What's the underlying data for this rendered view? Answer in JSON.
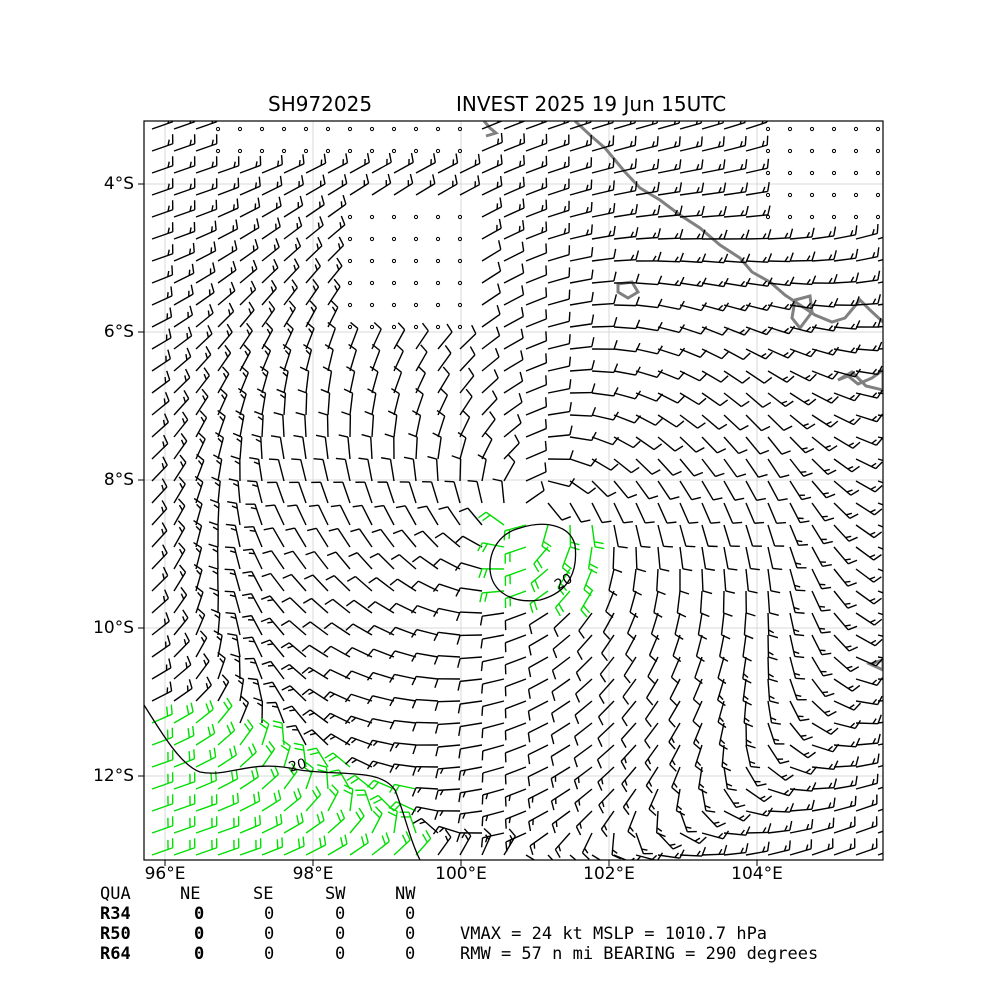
{
  "header": {
    "storm_id": "SH972025",
    "title": "INVEST 2025 19 Jun 15UTC"
  },
  "map": {
    "lon_ticks": [
      "96°E",
      "98°E",
      "100°E",
      "102°E",
      "104°E"
    ],
    "lat_ticks": [
      "4°S",
      "6°S",
      "8°S",
      "10°S",
      "12°S"
    ],
    "contour_label": "20",
    "colors": {
      "barb": "#000000",
      "barb_strong": "#00dd00",
      "coastline": "#808080",
      "grid": "#d8d8d8"
    },
    "vortex_center": {
      "lon": 100.9,
      "lat": -8.4
    }
  },
  "quadrants": {
    "header": [
      "QUA",
      "NE",
      "SE",
      "SW",
      "NW"
    ],
    "rows": [
      {
        "label": "R34",
        "values": [
          "0",
          "0",
          "0",
          "0"
        ]
      },
      {
        "label": "R50",
        "values": [
          "0",
          "0",
          "0",
          "0"
        ]
      },
      {
        "label": "R64",
        "values": [
          "0",
          "0",
          "0",
          "0"
        ]
      }
    ]
  },
  "stats": {
    "line1": "VMAX =  24 kt MSLP = 1010.7 hPa",
    "line2": "RMW =  57 n mi BEARING = 290 degrees"
  }
}
